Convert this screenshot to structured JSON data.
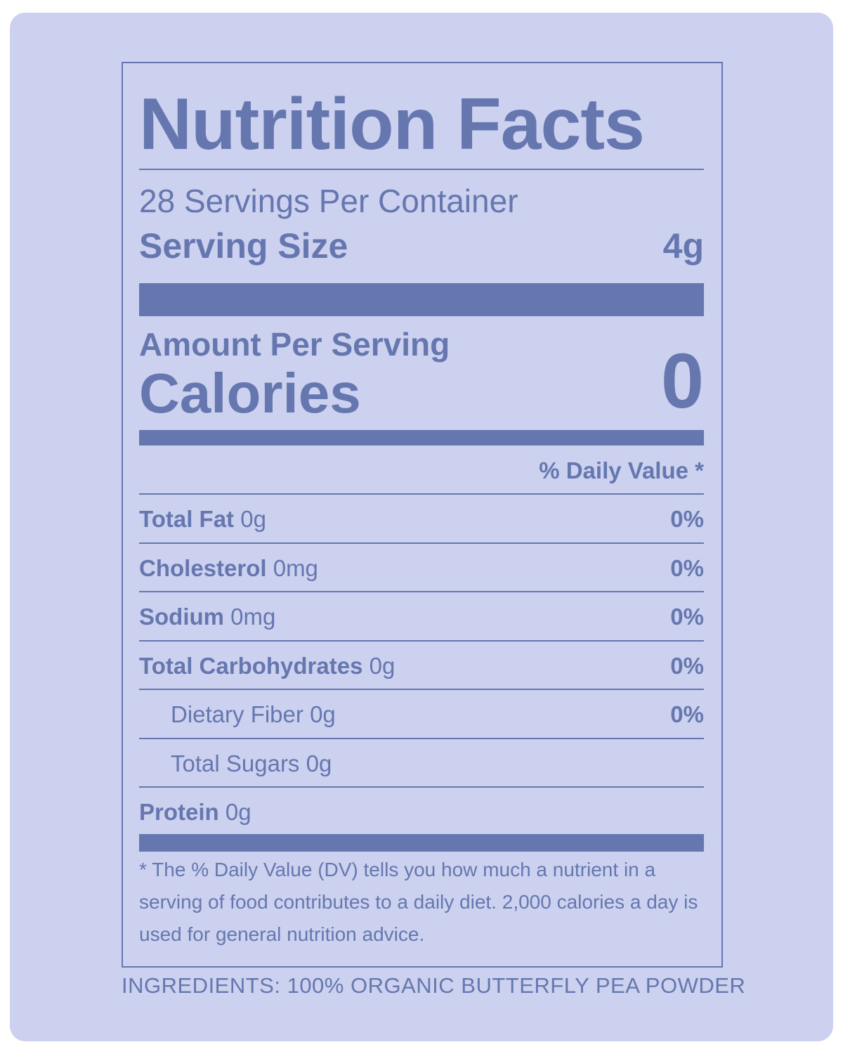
{
  "title": "Nutrition Facts",
  "servings": "28 Servings Per Container",
  "serving_size": {
    "label": "Serving Size",
    "value": "4g"
  },
  "amount_per_serving": "Amount Per Serving",
  "calories": {
    "label": "Calories",
    "value": "0"
  },
  "daily_value_header": "% Daily Value *",
  "nutrients": [
    {
      "name": "Total Fat",
      "amount": "0g",
      "dv": "0%",
      "indent": false
    },
    {
      "name": "Cholesterol",
      "amount": "0mg",
      "dv": "0%",
      "indent": false
    },
    {
      "name": "Sodium",
      "amount": "0mg",
      "dv": "0%",
      "indent": false
    },
    {
      "name": "Total Carbohydrates",
      "amount": "0g",
      "dv": "0%",
      "indent": false
    },
    {
      "name": "Dietary Fiber",
      "amount": "0g",
      "dv": "0%",
      "indent": true
    },
    {
      "name": "Total Sugars",
      "amount": "0g",
      "indent": true
    },
    {
      "name": "Protein",
      "amount": "0g",
      "indent": false
    }
  ],
  "footnote": "* The % Daily Value (DV) tells you how much a nutrient in a serving of food contributes to a daily diet. 2,000 calories a day is used for general nutrition advice.",
  "ingredients": "INGREDIENTS: 100% ORGANIC BUTTERFLY PEA POWDER"
}
